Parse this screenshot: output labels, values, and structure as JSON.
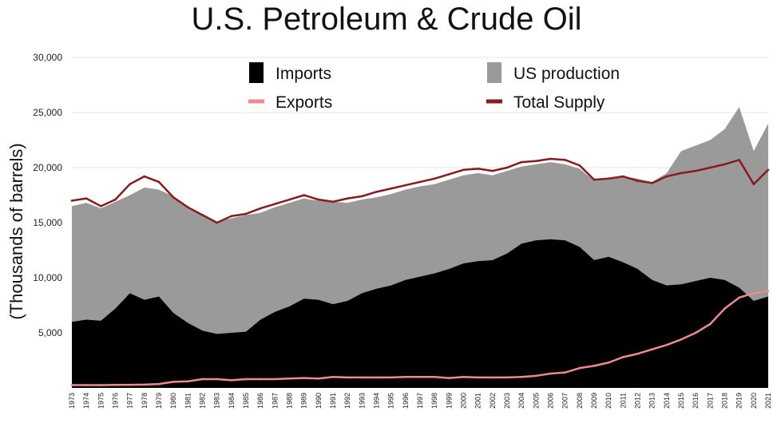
{
  "chart_data": {
    "type": "area",
    "title": "U.S. Petroleum & Crude Oil",
    "ylabel": "(Thousands of barrels)",
    "xlabel": "",
    "ylim": [
      0,
      30000
    ],
    "yticks": [
      "30,000",
      "25,000",
      "20,000",
      "15,000",
      "10,000",
      "5,000"
    ],
    "ytick_values": [
      30000,
      25000,
      20000,
      15000,
      10000,
      5000
    ],
    "grid": true,
    "legend_position": "top",
    "x_tick_labels": [
      "1973",
      "1974",
      "1975",
      "1976",
      "1977",
      "1978",
      "1979",
      "1980",
      "1981",
      "1982",
      "1983",
      "1984",
      "1985",
      "1986",
      "1987",
      "1988",
      "1989",
      "1990",
      "1991",
      "1992",
      "1993",
      "1994",
      "1995",
      "1996",
      "1997",
      "1998",
      "1999",
      "2000",
      "2001",
      "2002",
      "2003",
      "2004",
      "2005",
      "2006",
      "2007",
      "2008",
      "2009",
      "2010",
      "2011",
      "2012",
      "2013",
      "2014",
      "2015",
      "2016",
      "2017",
      "2018",
      "2019",
      "2020",
      "2021"
    ],
    "x": [
      1973,
      1974,
      1975,
      1976,
      1977,
      1978,
      1979,
      1980,
      1981,
      1982,
      1983,
      1984,
      1985,
      1986,
      1987,
      1988,
      1989,
      1990,
      1991,
      1992,
      1993,
      1994,
      1995,
      1996,
      1997,
      1998,
      1999,
      2000,
      2001,
      2002,
      2003,
      2004,
      2005,
      2006,
      2007,
      2008,
      2009,
      2010,
      2011,
      2012,
      2013,
      2014,
      2015,
      2016,
      2017,
      2018,
      2019,
      2020,
      2021
    ],
    "series": [
      {
        "name": "US production",
        "kind": "area",
        "color": "#9a9a9a",
        "values": [
          16500,
          16800,
          16300,
          16900,
          17500,
          18200,
          18000,
          17400,
          16300,
          15800,
          15100,
          15400,
          15700,
          15900,
          16400,
          16800,
          17200,
          17000,
          16900,
          16800,
          17100,
          17300,
          17600,
          18000,
          18300,
          18500,
          18900,
          19300,
          19500,
          19300,
          19700,
          20100,
          20300,
          20500,
          20300,
          19900,
          18800,
          19100,
          19200,
          19000,
          18700,
          19500,
          21500,
          22000,
          22500,
          23500,
          25500,
          21500,
          24000
        ]
      },
      {
        "name": "Imports",
        "kind": "area",
        "color": "#000000",
        "values": [
          6000,
          6200,
          6100,
          7200,
          8600,
          8000,
          8300,
          6800,
          5900,
          5200,
          4900,
          5000,
          5100,
          6200,
          6900,
          7400,
          8100,
          8000,
          7600,
          7900,
          8600,
          9000,
          9300,
          9800,
          10100,
          10400,
          10800,
          11300,
          11500,
          11600,
          12200,
          13100,
          13400,
          13500,
          13400,
          12800,
          11600,
          11900,
          11400,
          10800,
          9800,
          9300,
          9400,
          9700,
          10000,
          9800,
          9100,
          7900,
          8300
        ]
      },
      {
        "name": "Exports",
        "kind": "line",
        "color": "#f08a8a",
        "values": [
          250,
          250,
          250,
          270,
          280,
          300,
          350,
          550,
          600,
          800,
          800,
          700,
          800,
          800,
          800,
          850,
          900,
          850,
          1000,
          950,
          950,
          950,
          950,
          1000,
          1000,
          1000,
          900,
          1000,
          950,
          950,
          950,
          1000,
          1100,
          1300,
          1400,
          1800,
          2000,
          2300,
          2800,
          3100,
          3500,
          3900,
          4400,
          5000,
          5800,
          7200,
          8200,
          8600,
          8800
        ]
      },
      {
        "name": "Total Supply",
        "kind": "line",
        "color": "#8b1a1a",
        "values": [
          17000,
          17200,
          16500,
          17100,
          18500,
          19200,
          18700,
          17300,
          16400,
          15700,
          15000,
          15600,
          15800,
          16300,
          16700,
          17100,
          17500,
          17100,
          16900,
          17200,
          17400,
          17800,
          18100,
          18400,
          18700,
          19000,
          19400,
          19800,
          19900,
          19700,
          20000,
          20500,
          20600,
          20800,
          20700,
          20200,
          18900,
          19000,
          19200,
          18800,
          18600,
          19200,
          19500,
          19700,
          20000,
          20300,
          20700,
          18500,
          19800
        ]
      }
    ]
  }
}
